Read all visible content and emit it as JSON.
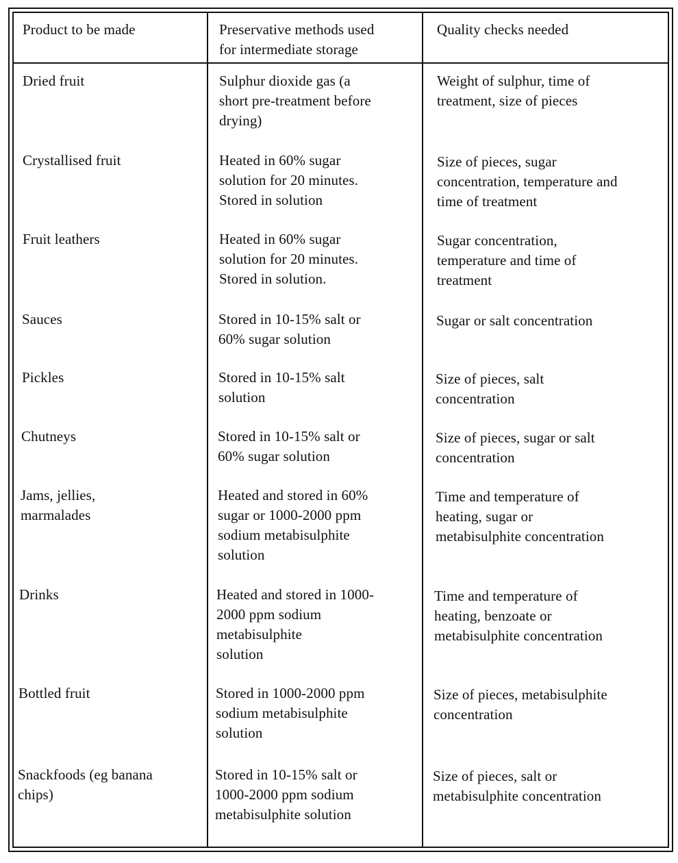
{
  "table": {
    "headers": [
      "Product to be made",
      "Preservative methods used\nfor intermediate storage",
      "Quality checks needed"
    ],
    "rows": [
      {
        "product": "Dried fruit",
        "method": "Sulphur dioxide gas (a\nshort pre-treatment before\ndrying)",
        "checks": "Weight of sulphur, time of\ntreatment, size of pieces"
      },
      {
        "product": "Crystallised fruit",
        "method": "Heated in 60% sugar\nsolution for 20 minutes.\nStored in  solution",
        "checks": "Size of pieces, sugar\nconcentration, temperature and\ntime of treatment"
      },
      {
        "product": "Fruit leathers",
        "method": "Heated in 60% sugar\nsolution for 20 minutes.\nStored in solution.",
        "checks": "Sugar concentration,\ntemperature and time of\ntreatment"
      },
      {
        "product": "Sauces",
        "method": "Stored in 10-15% salt or\n60% sugar solution",
        "checks": "Sugar or salt concentration"
      },
      {
        "product": "Pickles",
        "method": "Stored in 10-15% salt\nsolution",
        "checks": "Size of pieces, salt\nconcentration"
      },
      {
        "product": "Chutneys",
        "method": "Stored in 10-15% salt or\n60% sugar solution",
        "checks": "Size of pieces, sugar or salt\nconcentration"
      },
      {
        "product": "Jams, jellies,\nmarmalades",
        "method": "Heated and stored in 60%\nsugar or 1000-2000 ppm\nsodium metabisulphite\nsolution",
        "checks": "Time and temperature of\nheating, sugar or\nmetabisulphite concentration"
      },
      {
        "product": "Drinks",
        "method": "Heated and stored in 1000-\n2000 ppm sodium\nmetabisulphite\nsolution",
        "checks": "Time and temperature of\nheating, benzoate or\nmetabisulphite concentration"
      },
      {
        "product": "Bottled fruit",
        "method": "Stored in 1000-2000 ppm\nsodium metabisulphite\nsolution",
        "checks": "Size of pieces, metabisulphite\nconcentration"
      },
      {
        "product": "Snackfoods (eg banana\nchips)",
        "method": "Stored in 10-15% salt or\n1000-2000 ppm sodium\nmetabisulphite solution",
        "checks": "Size of pieces, salt or\nmetabisulphite concentration"
      }
    ]
  }
}
